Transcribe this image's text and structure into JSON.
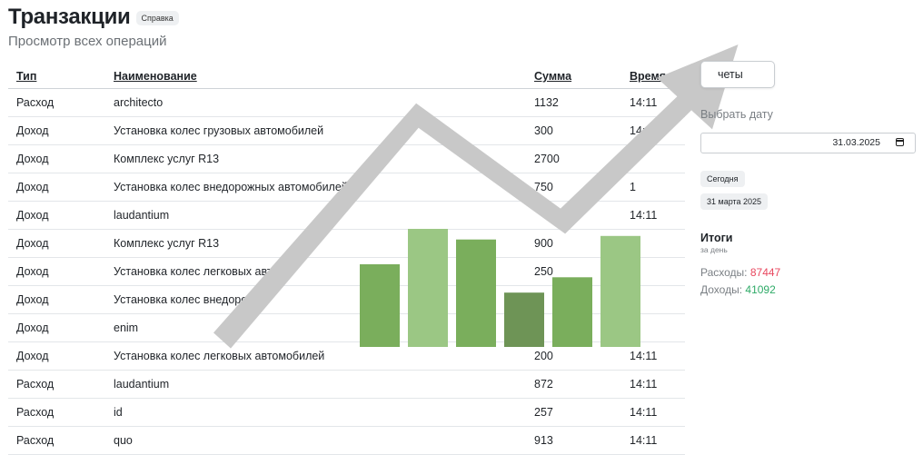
{
  "header": {
    "title": "Транзакции",
    "help_label": "Справка",
    "subtitle": "Просмотр всех операций"
  },
  "table": {
    "columns": [
      "Тип",
      "Наименование",
      "Сумма",
      "Время"
    ],
    "rows": [
      {
        "type": "Расход",
        "kind": "expense",
        "name": "architecto",
        "sum": "1132",
        "time": "14:11"
      },
      {
        "type": "Доход",
        "kind": "income",
        "name": "Установка колес грузовых автомобилей",
        "sum": "300",
        "time": "14:11"
      },
      {
        "type": "Доход",
        "kind": "income",
        "name": "Комплекс услуг R13",
        "sum": "2700",
        "time": "1"
      },
      {
        "type": "Доход",
        "kind": "income",
        "name": "Установка колес внедорожных автомобилей",
        "sum": "750",
        "time": "1"
      },
      {
        "type": "Доход",
        "kind": "income",
        "name": "laudantium",
        "sum": "",
        "time": "14:11"
      },
      {
        "type": "Доход",
        "kind": "income",
        "name": "Комплекс услуг R13",
        "sum": "900",
        "time": ""
      },
      {
        "type": "Доход",
        "kind": "income",
        "name": "Установка колес легковых авто",
        "sum": "250",
        "time": ""
      },
      {
        "type": "Доход",
        "kind": "income",
        "name": "Установка колес внедоро",
        "sum": "",
        "time": ""
      },
      {
        "type": "Доход",
        "kind": "income",
        "name": "enim",
        "sum": "",
        "time": ""
      },
      {
        "type": "Доход",
        "kind": "income",
        "name": "Установка колес легковых автомобилей",
        "sum": "200",
        "time": "14:11"
      },
      {
        "type": "Расход",
        "kind": "expense",
        "name": "laudantium",
        "sum": "872",
        "time": "14:11"
      },
      {
        "type": "Расход",
        "kind": "expense",
        "name": "id",
        "sum": "257",
        "time": "14:11"
      },
      {
        "type": "Расход",
        "kind": "expense",
        "name": "quo",
        "sum": "913",
        "time": "14:11"
      }
    ]
  },
  "sidebar": {
    "reports_label": "четы",
    "date_label": "Выбрать дату",
    "date_value": "31.03.2025",
    "today_label": "Сегодня",
    "date_chip": "31 марта 2025",
    "totals_title": "Итоги",
    "totals_sub": "за день",
    "expenses_label": "Расходы:",
    "expenses_value": "87447",
    "income_label": "Доходы:",
    "income_value": "41092"
  },
  "colors": {
    "expense": "#e8485f",
    "income": "#2eaa67",
    "bar_shades": [
      "#7aae5c",
      "#9bc784",
      "#7aae5c",
      "#6e9456",
      "#7aae5c",
      "#9bc784"
    ],
    "arrow": "#c8c8c8"
  },
  "illustration": {
    "bar_levels": [
      0.7,
      1.0,
      0.91,
      0.46,
      0.59,
      0.94
    ]
  }
}
